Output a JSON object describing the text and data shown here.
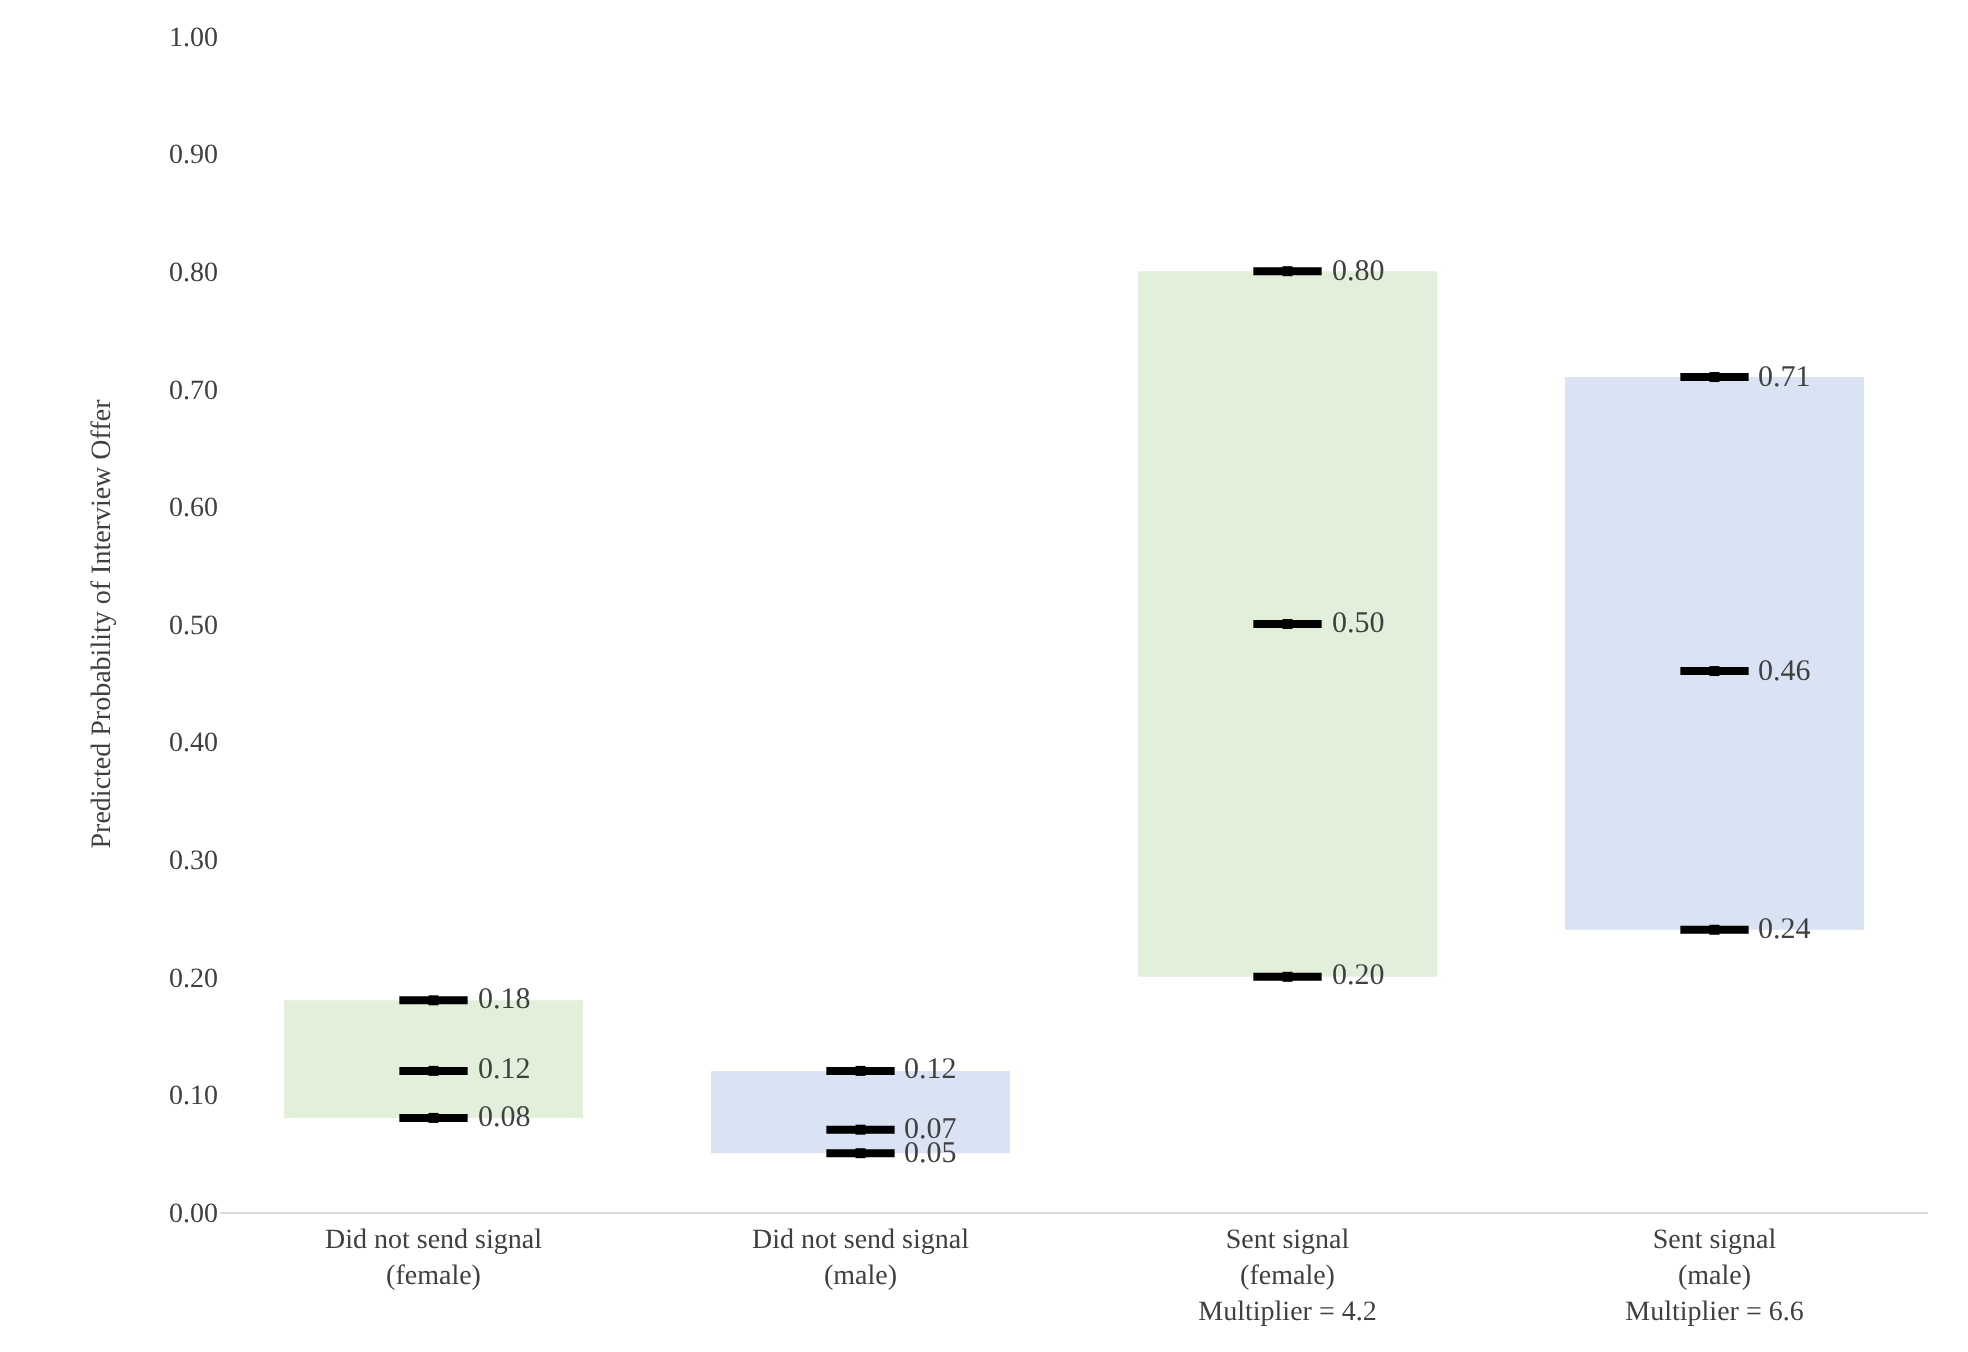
{
  "chart_data": {
    "type": "bar",
    "ylabel": "Predicted Probability of Interview Offer",
    "categories": [
      "Did not send signal\n(female)",
      "Did not send signal\n(male)",
      "Sent signal\n(female)\nMultiplier = 4.2",
      "Sent signal\n(male)\nMultiplier = 6.6"
    ],
    "series": [
      {
        "colors": [
          "#e2efda",
          "#dae3f3",
          "#e2efda",
          "#dae3f3"
        ],
        "base": [
          0.08,
          0.05,
          0.2,
          0.24
        ],
        "values": [
          0.1,
          0.07,
          0.6,
          0.47
        ]
      },
      {
        "type": "scatter",
        "color": "#000000",
        "values": [
          0.08,
          0.05,
          0.2,
          0.24
        ],
        "value_labels": [
          "0.08",
          "0.05",
          "0.20",
          "0.24"
        ]
      },
      {
        "type": "scatter",
        "color": "#000000",
        "values": [
          0.12,
          0.07,
          0.5,
          0.46
        ],
        "value_labels": [
          "0.12",
          "0.07",
          "0.50",
          "0.46"
        ]
      },
      {
        "type": "scatter",
        "color": "#000000",
        "values": [
          0.18,
          0.12,
          0.8,
          0.71
        ],
        "value_labels": [
          "0.18",
          "0.12",
          "0.80",
          "0.71"
        ]
      }
    ],
    "ylim": [
      0,
      1
    ],
    "yticks": [
      {
        "value": 0,
        "label": "0.00"
      },
      {
        "value": 0.1,
        "label": "0.10"
      },
      {
        "value": 0.2,
        "label": "0.20"
      },
      {
        "value": 0.3,
        "label": "0.30"
      },
      {
        "value": 0.4,
        "label": "0.40"
      },
      {
        "value": 0.5,
        "label": "0.50"
      },
      {
        "value": 0.6,
        "label": "0.60"
      },
      {
        "value": 0.7,
        "label": "0.70"
      },
      {
        "value": 0.8,
        "label": "0.80"
      },
      {
        "value": 0.9,
        "label": "0.90"
      },
      {
        "value": 1,
        "label": "1.00"
      }
    ]
  }
}
